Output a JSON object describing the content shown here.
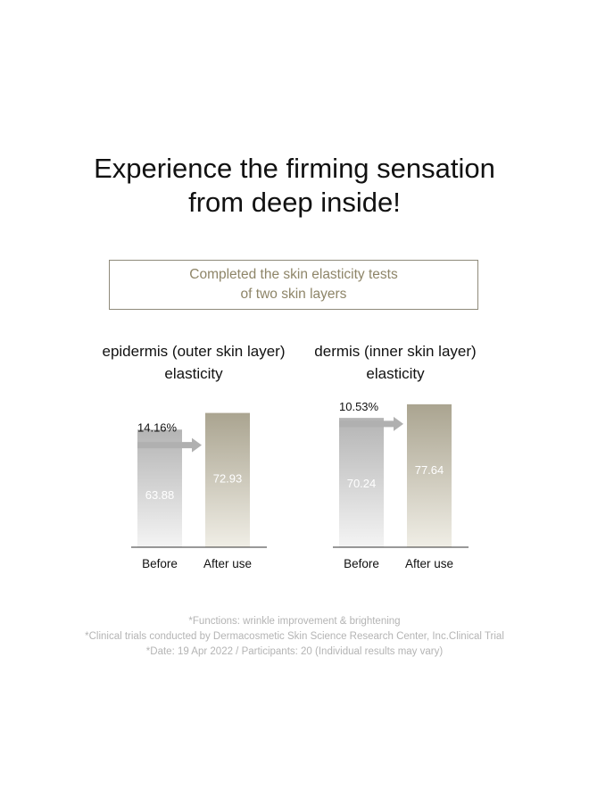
{
  "headline": {
    "line1": "Experience the firming sensation",
    "line2": "from deep inside!"
  },
  "test_box": {
    "line1": "Completed the skin elasticity tests",
    "line2": "of two skin layers"
  },
  "colors": {
    "before_bar_top": "#b4b4b4",
    "before_bar_bottom": "#f4f4f4",
    "after_bar_top": "#aaa490",
    "after_bar_bottom": "#f0eee6",
    "arrow": "#b0b0b0",
    "value_label": "#ffffff",
    "box_text": "#8e8568",
    "footnote": "#b4b4b4"
  },
  "chart_data": [
    {
      "type": "bar",
      "title_line1": "epidermis (outer skin layer)",
      "title_line2": "elasticity",
      "categories": [
        "Before",
        "After use"
      ],
      "values": [
        63.88,
        72.93
      ],
      "value_labels": [
        "63.88",
        "72.93"
      ],
      "change_label": "14.16%",
      "xlabel": "",
      "ylabel": "",
      "ylim": [
        0,
        80
      ]
    },
    {
      "type": "bar",
      "title_line1": "dermis (inner skin layer)",
      "title_line2": "elasticity",
      "categories": [
        "Before",
        "After use"
      ],
      "values": [
        70.24,
        77.64
      ],
      "value_labels": [
        "70.24",
        "77.64"
      ],
      "change_label": "10.53%",
      "xlabel": "",
      "ylabel": "",
      "ylim": [
        0,
        80
      ]
    }
  ],
  "footnotes": [
    "*Functions: wrinkle improvement & brightening",
    "*Clinical trials conducted by Dermacosmetic Skin Science Research Center, Inc.Clinical Trial",
    "*Date: 19 Apr 2022 / Participants: 20 (Individual results may vary)"
  ]
}
